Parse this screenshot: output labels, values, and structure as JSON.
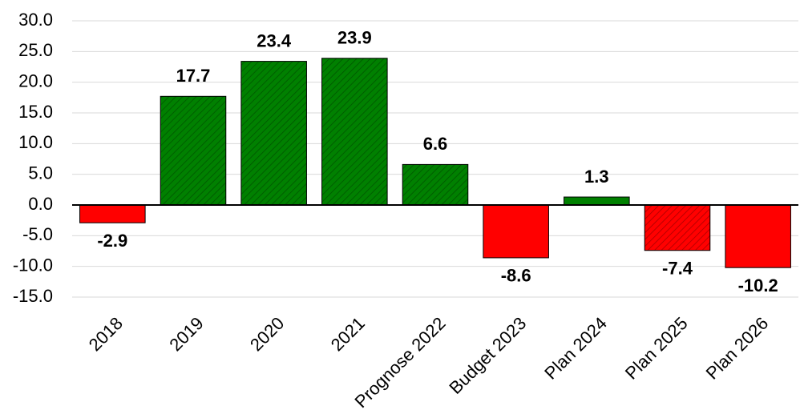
{
  "chart_data": {
    "type": "bar",
    "categories": [
      "2018",
      "2019",
      "2020",
      "2021",
      "Prognose 2022",
      "Budget 2023",
      "Plan 2024",
      "Plan 2025",
      "Plan 2026"
    ],
    "values": [
      -2.9,
      17.7,
      23.4,
      23.9,
      6.6,
      -8.6,
      1.3,
      -7.4,
      -10.2
    ],
    "colors": [
      "#ff0000",
      "#008000",
      "#008000",
      "#008000",
      "#008000",
      "#ff0000",
      "#008000",
      "#ff0000",
      "#ff0000"
    ],
    "hatched": [
      false,
      true,
      true,
      true,
      true,
      false,
      false,
      true,
      false
    ],
    "ylim": [
      -15,
      30
    ],
    "yticks": [
      {
        "value": -15,
        "label": "-15.0"
      },
      {
        "value": -10,
        "label": "-10.0"
      },
      {
        "value": -5,
        "label": "-5.0"
      },
      {
        "value": 0,
        "label": "0.0"
      },
      {
        "value": 5,
        "label": "5.0"
      },
      {
        "value": 10,
        "label": "10.0"
      },
      {
        "value": 15,
        "label": "15.0"
      },
      {
        "value": 20,
        "label": "20.0"
      },
      {
        "value": 25,
        "label": "25.0"
      },
      {
        "value": 30,
        "label": "30.0"
      }
    ],
    "grid": true
  }
}
